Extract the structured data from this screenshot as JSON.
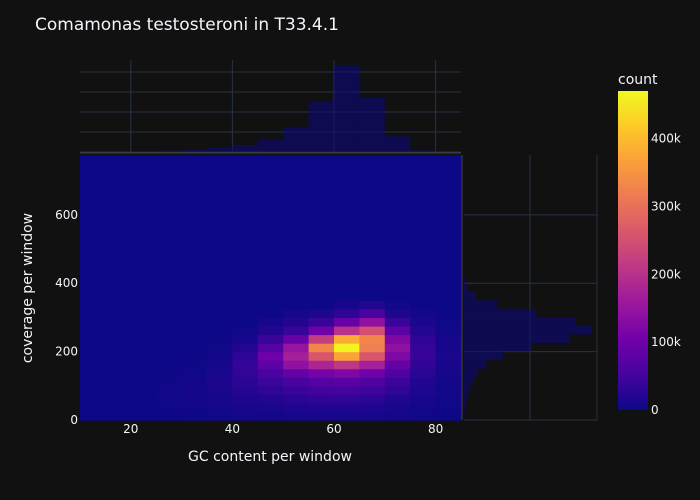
{
  "chart_data": {
    "type": "heatmap",
    "title": "Comamonas testosteroni in T33.4.1",
    "xlabel": "GC content per window",
    "ylabel": "coverage per window",
    "xlim": [
      10,
      85
    ],
    "ylim": [
      0,
      775
    ],
    "x_ticks": [
      20,
      40,
      60,
      80
    ],
    "y_ticks": [
      0,
      200,
      400,
      600
    ],
    "bin_x_width": 5,
    "bin_y_height": 25,
    "x_bin_starts": [
      10,
      15,
      20,
      25,
      30,
      35,
      40,
      45,
      50,
      55,
      60,
      65,
      70,
      75,
      80
    ],
    "y_bin_starts": [
      0,
      25,
      50,
      75,
      100,
      125,
      150,
      175,
      200,
      225,
      250,
      275,
      300,
      325,
      350,
      375,
      400,
      425,
      450,
      475,
      500,
      525,
      550,
      575,
      600,
      625,
      650,
      675,
      700,
      725,
      750
    ],
    "counts_x_bins_by_y_bins": [
      [
        0,
        0,
        0,
        0,
        0,
        0,
        0,
        0,
        0,
        0,
        0,
        0,
        0,
        0,
        0,
        0,
        0,
        0,
        0,
        0,
        0,
        0,
        0,
        0,
        0,
        0,
        0,
        0,
        0,
        0,
        0
      ],
      [
        0,
        0,
        0,
        0,
        0,
        0,
        0,
        0,
        0,
        0,
        0,
        0,
        0,
        0,
        0,
        0,
        0,
        0,
        0,
        0,
        0,
        0,
        0,
        0,
        0,
        0,
        0,
        0,
        0,
        0,
        0
      ],
      [
        0,
        200,
        300,
        0,
        0,
        0,
        0,
        0,
        0,
        0,
        0,
        0,
        0,
        0,
        0,
        0,
        0,
        0,
        0,
        0,
        0,
        0,
        0,
        0,
        0,
        0,
        0,
        0,
        0,
        0,
        0
      ],
      [
        1000,
        2000,
        3000,
        3000,
        2000,
        1000,
        0,
        0,
        0,
        0,
        0,
        0,
        0,
        0,
        0,
        0,
        0,
        0,
        0,
        0,
        0,
        0,
        0,
        0,
        0,
        0,
        0,
        0,
        0,
        0,
        0
      ],
      [
        2000,
        4000,
        6000,
        7000,
        6000,
        4000,
        2000,
        1000,
        0,
        0,
        0,
        0,
        0,
        0,
        0,
        0,
        0,
        0,
        0,
        0,
        0,
        0,
        0,
        0,
        0,
        0,
        0,
        0,
        0,
        0,
        0
      ],
      [
        3000,
        6000,
        9000,
        12000,
        14000,
        12000,
        9000,
        6000,
        3000,
        1000,
        0,
        0,
        0,
        0,
        0,
        0,
        0,
        0,
        0,
        0,
        0,
        0,
        0,
        0,
        0,
        0,
        0,
        0,
        0,
        0,
        0
      ],
      [
        5000,
        10000,
        16000,
        22000,
        28000,
        34000,
        37000,
        30000,
        20000,
        10000,
        5000,
        0,
        0,
        0,
        0,
        0,
        0,
        0,
        0,
        0,
        0,
        0,
        0,
        0,
        0,
        0,
        0,
        0,
        0,
        0,
        0
      ],
      [
        7000,
        12000,
        20000,
        30000,
        42000,
        58000,
        80000,
        100000,
        70000,
        40000,
        20000,
        8000,
        0,
        0,
        0,
        0,
        0,
        0,
        0,
        0,
        0,
        0,
        0,
        0,
        0,
        0,
        0,
        0,
        0,
        0,
        0
      ],
      [
        9000,
        16000,
        28000,
        40000,
        58000,
        85000,
        140000,
        170000,
        150000,
        90000,
        40000,
        20000,
        8000,
        0,
        0,
        0,
        0,
        0,
        0,
        0,
        0,
        0,
        0,
        0,
        0,
        0,
        0,
        0,
        0,
        0,
        0
      ],
      [
        10000,
        18000,
        32000,
        50000,
        70000,
        110000,
        180000,
        260000,
        330000,
        220000,
        100000,
        40000,
        15000,
        0,
        0,
        0,
        0,
        0,
        0,
        0,
        0,
        0,
        0,
        0,
        0,
        0,
        0,
        0,
        0,
        0,
        0
      ],
      [
        10000,
        18000,
        33000,
        52000,
        75000,
        120000,
        210000,
        370000,
        465000,
        380000,
        200000,
        90000,
        30000,
        10000,
        0,
        0,
        0,
        0,
        0,
        0,
        0,
        0,
        0,
        0,
        0,
        0,
        0,
        0,
        0,
        0,
        0
      ],
      [
        8000,
        16000,
        28000,
        45000,
        65000,
        100000,
        170000,
        260000,
        320000,
        330000,
        250000,
        140000,
        60000,
        20000,
        0,
        0,
        0,
        0,
        0,
        0,
        0,
        0,
        0,
        0,
        0,
        0,
        0,
        0,
        0,
        0,
        0
      ],
      [
        6000,
        10000,
        18000,
        30000,
        44000,
        62000,
        88000,
        120000,
        140000,
        120000,
        80000,
        40000,
        15000,
        5000,
        0,
        0,
        0,
        0,
        0,
        0,
        0,
        0,
        0,
        0,
        0,
        0,
        0,
        0,
        0,
        0,
        0
      ],
      [
        3000,
        6000,
        10000,
        15000,
        20000,
        26000,
        32000,
        38000,
        36000,
        30000,
        22000,
        12000,
        6000,
        0,
        0,
        0,
        0,
        0,
        0,
        0,
        0,
        0,
        0,
        0,
        0,
        0,
        0,
        0,
        0,
        0,
        0
      ],
      [
        1000,
        2000,
        3000,
        5000,
        7000,
        9000,
        10000,
        11000,
        10000,
        8000,
        5000,
        3000,
        0,
        0,
        0,
        0,
        0,
        0,
        0,
        0,
        0,
        0,
        0,
        0,
        0,
        0,
        0,
        0,
        0,
        0,
        0
      ]
    ],
    "x_marginal": {
      "bin_starts": [
        10,
        15,
        20,
        25,
        30,
        35,
        40,
        45,
        50,
        55,
        60,
        65,
        70,
        75,
        80
      ],
      "counts": [
        0,
        0,
        200,
        800,
        1500,
        3000,
        4500,
        8000,
        16000,
        32000,
        55000,
        35000,
        10000,
        1000,
        0
      ]
    },
    "y_marginal": {
      "bin_starts": [
        0,
        25,
        50,
        75,
        100,
        125,
        150,
        175,
        200,
        225,
        250,
        275,
        300,
        325,
        350,
        375,
        400
      ],
      "counts": [
        600,
        2000,
        5000,
        9000,
        16000,
        25000,
        40000,
        70000,
        120000,
        190000,
        230000,
        200000,
        130000,
        60000,
        20000,
        5000,
        1000
      ]
    },
    "colorbar": {
      "title": "count",
      "ticks": [
        0,
        100000,
        200000,
        300000,
        400000
      ],
      "tick_labels": [
        "0",
        "100k",
        "200k",
        "300k",
        "400k"
      ],
      "range": [
        0,
        470000
      ]
    },
    "grid": true,
    "colorscale": [
      "#0d0887",
      "#46039f",
      "#7201a8",
      "#9c179e",
      "#bd3786",
      "#d8576b",
      "#ed7953",
      "#fb9f3a",
      "#fdca26",
      "#f0f921"
    ],
    "background": "#111111",
    "marginal_color": "#0d0887"
  }
}
